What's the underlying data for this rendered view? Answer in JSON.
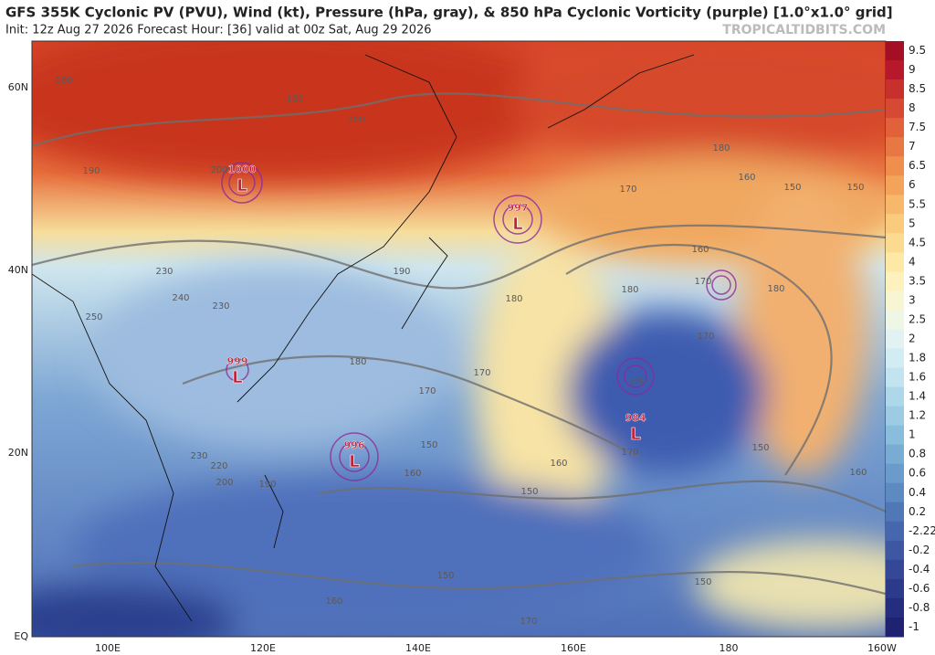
{
  "header": {
    "title": "GFS 355K Cyclonic PV (PVU), Wind (kt), Pressure (hPa, gray), & 850 hPa Cyclonic Vorticity (purple) [1.0°x1.0° grid]",
    "subtitle": "Init: 12z Aug 27 2026   Forecast Hour: [36]   valid at 00z Sat, Aug 29 2026",
    "watermark": "TROPICALTIDBITS.COM"
  },
  "lon_labels": [
    "100E",
    "120E",
    "140E",
    "160E",
    "180",
    "160W"
  ],
  "lat_labels": [
    "60N",
    "40N",
    "20N",
    "EQ"
  ],
  "colorbar": [
    "9.5",
    "9",
    "8.5",
    "8",
    "7.5",
    "7",
    "6.5",
    "6",
    "5.5",
    "5",
    "4.5",
    "4",
    "3.5",
    "3",
    "2.5",
    "2",
    "1.8",
    "1.6",
    "1.4",
    "1.2",
    "1",
    "0.8",
    "0.6",
    "0.4",
    "0.2",
    "-2.22",
    "-0.2",
    "-0.4",
    "-0.6",
    "-0.8",
    "-1"
  ],
  "lows": [
    {
      "pressure": "1000",
      "label": "L"
    },
    {
      "pressure": "997",
      "label": "L"
    },
    {
      "pressure": "999",
      "label": "L"
    },
    {
      "pressure": "996",
      "label": "L"
    },
    {
      "pressure": "984",
      "label": "L"
    }
  ],
  "contour_labels": [
    "190",
    "180",
    "200",
    "190",
    "200",
    "230",
    "240",
    "250",
    "230",
    "190",
    "180",
    "170",
    "180",
    "160",
    "150",
    "150",
    "160",
    "170",
    "180",
    "180",
    "170",
    "180",
    "170",
    "170",
    "200",
    "170",
    "160",
    "150",
    "160",
    "150",
    "150",
    "160",
    "150",
    "160",
    "170",
    "150",
    "230",
    "220",
    "200",
    "190"
  ]
}
